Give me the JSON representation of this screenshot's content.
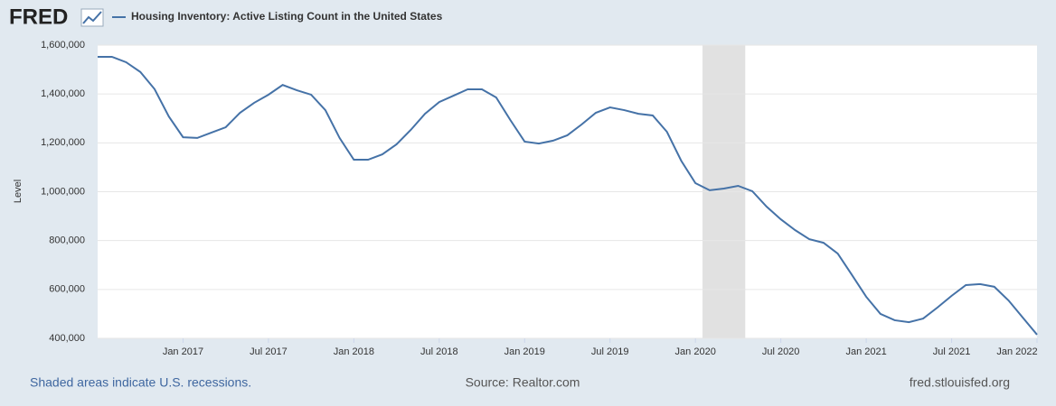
{
  "logo": "FRED",
  "chart_data": {
    "type": "line",
    "y_label": "Level",
    "x": [
      "2016-07",
      "2016-08",
      "2016-09",
      "2016-10",
      "2016-11",
      "2016-12",
      "2017-01",
      "2017-02",
      "2017-03",
      "2017-04",
      "2017-05",
      "2017-06",
      "2017-07",
      "2017-08",
      "2017-09",
      "2017-10",
      "2017-11",
      "2017-12",
      "2018-01",
      "2018-02",
      "2018-03",
      "2018-04",
      "2018-05",
      "2018-06",
      "2018-07",
      "2018-08",
      "2018-09",
      "2018-10",
      "2018-11",
      "2018-12",
      "2019-01",
      "2019-02",
      "2019-03",
      "2019-04",
      "2019-05",
      "2019-06",
      "2019-07",
      "2019-08",
      "2019-09",
      "2019-10",
      "2019-11",
      "2019-12",
      "2020-01",
      "2020-02",
      "2020-03",
      "2020-04",
      "2020-05",
      "2020-06",
      "2020-07",
      "2020-08",
      "2020-09",
      "2020-10",
      "2020-11",
      "2020-12",
      "2021-01",
      "2021-02",
      "2021-03",
      "2021-04",
      "2021-05",
      "2021-06",
      "2021-07",
      "2021-08",
      "2021-09",
      "2021-10",
      "2021-11",
      "2021-12",
      "2022-01"
    ],
    "series": [
      {
        "name": "Housing Inventory: Active Listing Count in the United States",
        "color": "#4572a7",
        "values": [
          1552000,
          1552000,
          1530000,
          1490000,
          1420000,
          1308000,
          1223000,
          1220000,
          1242000,
          1264000,
          1323000,
          1364000,
          1397000,
          1437000,
          1415000,
          1397000,
          1334000,
          1220000,
          1131000,
          1131000,
          1153000,
          1194000,
          1253000,
          1319000,
          1367000,
          1393000,
          1419000,
          1419000,
          1386000,
          1293000,
          1205000,
          1197000,
          1209000,
          1231000,
          1275000,
          1323000,
          1345000,
          1334000,
          1319000,
          1312000,
          1245000,
          1127000,
          1035000,
          1006000,
          1013000,
          1024000,
          1002000,
          939000,
          887000,
          843000,
          806000,
          791000,
          747000,
          659000,
          570000,
          500000,
          474000,
          466000,
          481000,
          526000,
          574000,
          618000,
          622000,
          611000,
          555000,
          485000,
          415000
        ]
      }
    ],
    "xticks": [
      {
        "value": "2017-01",
        "label": "Jan 2017"
      },
      {
        "value": "2017-07",
        "label": "Jul 2017"
      },
      {
        "value": "2018-01",
        "label": "Jan 2018"
      },
      {
        "value": "2018-07",
        "label": "Jul 2018"
      },
      {
        "value": "2019-01",
        "label": "Jan 2019"
      },
      {
        "value": "2019-07",
        "label": "Jul 2019"
      },
      {
        "value": "2020-01",
        "label": "Jan 2020"
      },
      {
        "value": "2020-07",
        "label": "Jul 2020"
      },
      {
        "value": "2021-01",
        "label": "Jan 2021"
      },
      {
        "value": "2021-07",
        "label": "Jul 2021"
      },
      {
        "value": "2022-01",
        "label": "Jan 2022"
      }
    ],
    "ylim": [
      400000,
      1600000
    ],
    "yticks": [
      {
        "value": 400000,
        "label": "400,000"
      },
      {
        "value": 600000,
        "label": "600,000"
      },
      {
        "value": 800000,
        "label": "800,000"
      },
      {
        "value": 1000000,
        "label": "1,000,000"
      },
      {
        "value": 1200000,
        "label": "1,200,000"
      },
      {
        "value": 1400000,
        "label": "1,400,000"
      },
      {
        "value": 1600000,
        "label": "1,600,000"
      }
    ],
    "grid": true,
    "recessions": [
      {
        "start": "2020-02",
        "end": "2020-04"
      }
    ],
    "recession_color": "#e1e1e1",
    "recession_note": "Shaded areas indicate U.S. recessions.",
    "source": "Source: Realtor.com",
    "site": "fred.stlouisfed.org"
  }
}
